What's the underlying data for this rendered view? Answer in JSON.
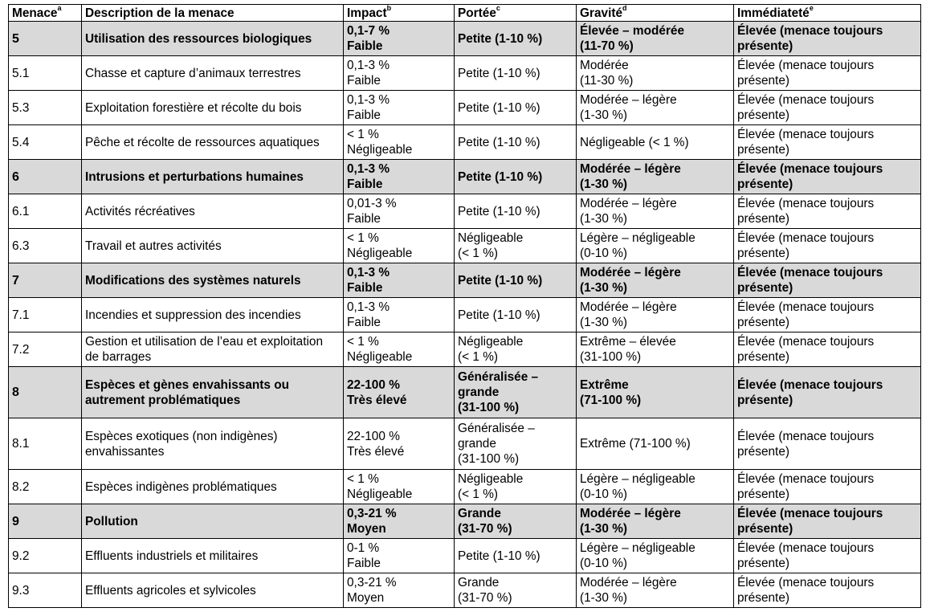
{
  "header": {
    "menace": "Menace",
    "menace_sup": "a",
    "description": "Description de la menace",
    "impact": "Impact",
    "impact_sup": "b",
    "portee": "Portée",
    "portee_sup": "c",
    "gravite": "Gravité",
    "gravite_sup": "d",
    "immediatete": "Immédiateté",
    "immediatete_sup": "e"
  },
  "rows": [
    {
      "code": "5",
      "description": "Utilisation des ressources biologiques",
      "impact": [
        "0,1-7 %",
        "Faible"
      ],
      "portee": [
        "Petite (1-10 %)"
      ],
      "gravite": [
        "Élevée – modérée",
        "(11-70 %)"
      ],
      "immediatete": "Élevée (menace toujours présente)"
    },
    {
      "code": "5.1",
      "description": "Chasse et capture d’animaux terrestres",
      "impact": [
        "0,1-3 %",
        "Faible"
      ],
      "portee": [
        "Petite (1-10 %)"
      ],
      "gravite": [
        "Modérée",
        "(11-30 %)"
      ],
      "immediatete": "Élevée (menace toujours présente)"
    },
    {
      "code": "5.3",
      "description": "Exploitation forestière et récolte du bois",
      "impact": [
        "0,1-3 %",
        "Faible"
      ],
      "portee": [
        "Petite (1-10 %)"
      ],
      "gravite": [
        "Modérée – légère",
        "(1-30 %)"
      ],
      "immediatete": "Élevée (menace toujours présente)"
    },
    {
      "code": "5.4",
      "description": "Pêche et récolte de ressources aquatiques",
      "impact": [
        "< 1 %",
        "Négligeable"
      ],
      "portee": [
        "Petite (1-10 %)"
      ],
      "gravite": [
        "Négligeable (< 1 %)"
      ],
      "immediatete": "Élevée (menace toujours présente)"
    },
    {
      "code": "6",
      "description": "Intrusions et perturbations humaines",
      "impact": [
        "0,1-3 %",
        "Faible"
      ],
      "portee": [
        "Petite (1-10 %)"
      ],
      "gravite": [
        "Modérée – légère",
        "(1-30 %)"
      ],
      "immediatete": "Élevée (menace toujours présente)"
    },
    {
      "code": "6.1",
      "description": "Activités récréatives",
      "impact": [
        "0,01-3 %",
        "Faible"
      ],
      "portee": [
        "Petite (1-10 %)"
      ],
      "gravite": [
        "Modérée – légère",
        "(1-30 %)"
      ],
      "immediatete": "Élevée (menace toujours présente)"
    },
    {
      "code": "6.3",
      "description": "Travail et autres activités",
      "impact": [
        "< 1 %",
        "Négligeable"
      ],
      "portee": [
        "Négligeable",
        "(< 1 %)"
      ],
      "gravite": [
        "Légère – négligeable",
        "(0-10 %)"
      ],
      "immediatete": "Élevée (menace toujours présente)"
    },
    {
      "code": "7",
      "description": "Modifications des systèmes naturels",
      "impact": [
        "0,1-3 %",
        "Faible"
      ],
      "portee": [
        "Petite (1-10 %)"
      ],
      "gravite": [
        "Modérée – légère",
        "(1-30 %)"
      ],
      "immediatete": "Élevée (menace toujours présente)"
    },
    {
      "code": "7.1",
      "description": "Incendies et suppression des incendies",
      "impact": [
        "0,1-3 %",
        "Faible"
      ],
      "portee": [
        "Petite (1-10 %)"
      ],
      "gravite": [
        "Modérée – légère",
        "(1-30 %)"
      ],
      "immediatete": "Élevée (menace toujours présente)"
    },
    {
      "code": "7.2",
      "description": "Gestion et utilisation de l’eau et exploitation de barrages",
      "impact": [
        "< 1 %",
        "Négligeable"
      ],
      "portee": [
        "Négligeable",
        "(< 1 %)"
      ],
      "gravite": [
        "Extrême – élevée",
        "(31-100 %)"
      ],
      "immediatete": "Élevée (menace toujours présente)"
    },
    {
      "code": "8",
      "description": "Espèces et gènes envahissants ou autrement problématiques",
      "impact": [
        "22-100 %",
        "Très élevé"
      ],
      "portee": [
        "Généralisée –",
        "grande",
        "(31-100 %)"
      ],
      "gravite": [
        "Extrême",
        "(71-100 %)"
      ],
      "immediatete": "Élevée (menace toujours présente)"
    },
    {
      "code": "8.1",
      "description": "Espèces exotiques (non indigènes) envahissantes",
      "impact": [
        "22-100 %",
        "Très élevé"
      ],
      "portee": [
        "Généralisée –",
        "grande",
        "(31-100 %)"
      ],
      "gravite": [
        "Extrême (71-100 %)"
      ],
      "immediatete": "Élevée (menace toujours présente)"
    },
    {
      "code": "8.2",
      "description": "Espèces indigènes problématiques",
      "impact": [
        "< 1 %",
        "Négligeable"
      ],
      "portee": [
        "Négligeable",
        "(< 1 %)"
      ],
      "gravite": [
        "Légère – négligeable",
        "(0-10 %)"
      ],
      "immediatete": "Élevée (menace toujours présente)"
    },
    {
      "code": "9",
      "description": "Pollution",
      "impact": [
        "0,3-21 %",
        "Moyen"
      ],
      "portee": [
        "Grande",
        "(31-70 %)"
      ],
      "gravite": [
        "Modérée – légère",
        "(1-30 %)"
      ],
      "immediatete": "Élevée (menace toujours présente)"
    },
    {
      "code": "9.2",
      "description": "Effluents industriels et militaires",
      "impact": [
        "0-1 %",
        "Faible"
      ],
      "portee": [
        "Petite (1-10 %)"
      ],
      "gravite": [
        "Légère – négligeable",
        "(0-10 %)"
      ],
      "immediatete": "Élevée (menace toujours présente)"
    },
    {
      "code": "9.3",
      "description": "Effluents agricoles et sylvicoles",
      "impact": [
        "0,3-21 %",
        "Moyen"
      ],
      "portee": [
        "Grande",
        "(31-70 %)"
      ],
      "gravite": [
        "Modérée – légère",
        "(1-30 %)"
      ],
      "immediatete": "Élevée (menace toujours présente)"
    }
  ]
}
